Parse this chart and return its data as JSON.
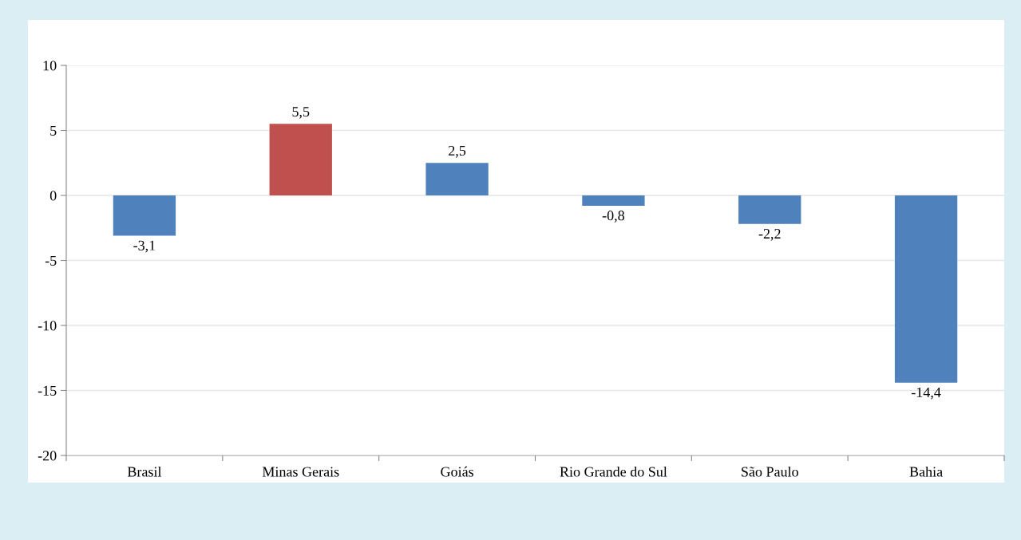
{
  "chart_data": {
    "type": "bar",
    "categories": [
      "Brasil",
      "Minas Gerais",
      "Goiás",
      "Rio Grande do Sul",
      "São Paulo",
      "Bahia"
    ],
    "values": [
      -3.1,
      5.5,
      2.5,
      -0.8,
      -2.2,
      -14.4
    ],
    "colors": [
      "#4f81bd",
      "#c0504d",
      "#4f81bd",
      "#4f81bd",
      "#4f81bd",
      "#4f81bd"
    ],
    "value_labels": [
      "-3,1",
      "5,5",
      "2,5",
      "-0,8",
      "-2,2",
      "-14,4"
    ],
    "ylim": [
      -20,
      10
    ],
    "yticks": [
      -20,
      -15,
      -10,
      -5,
      0,
      5,
      10
    ],
    "grid": "y",
    "legend": false
  }
}
